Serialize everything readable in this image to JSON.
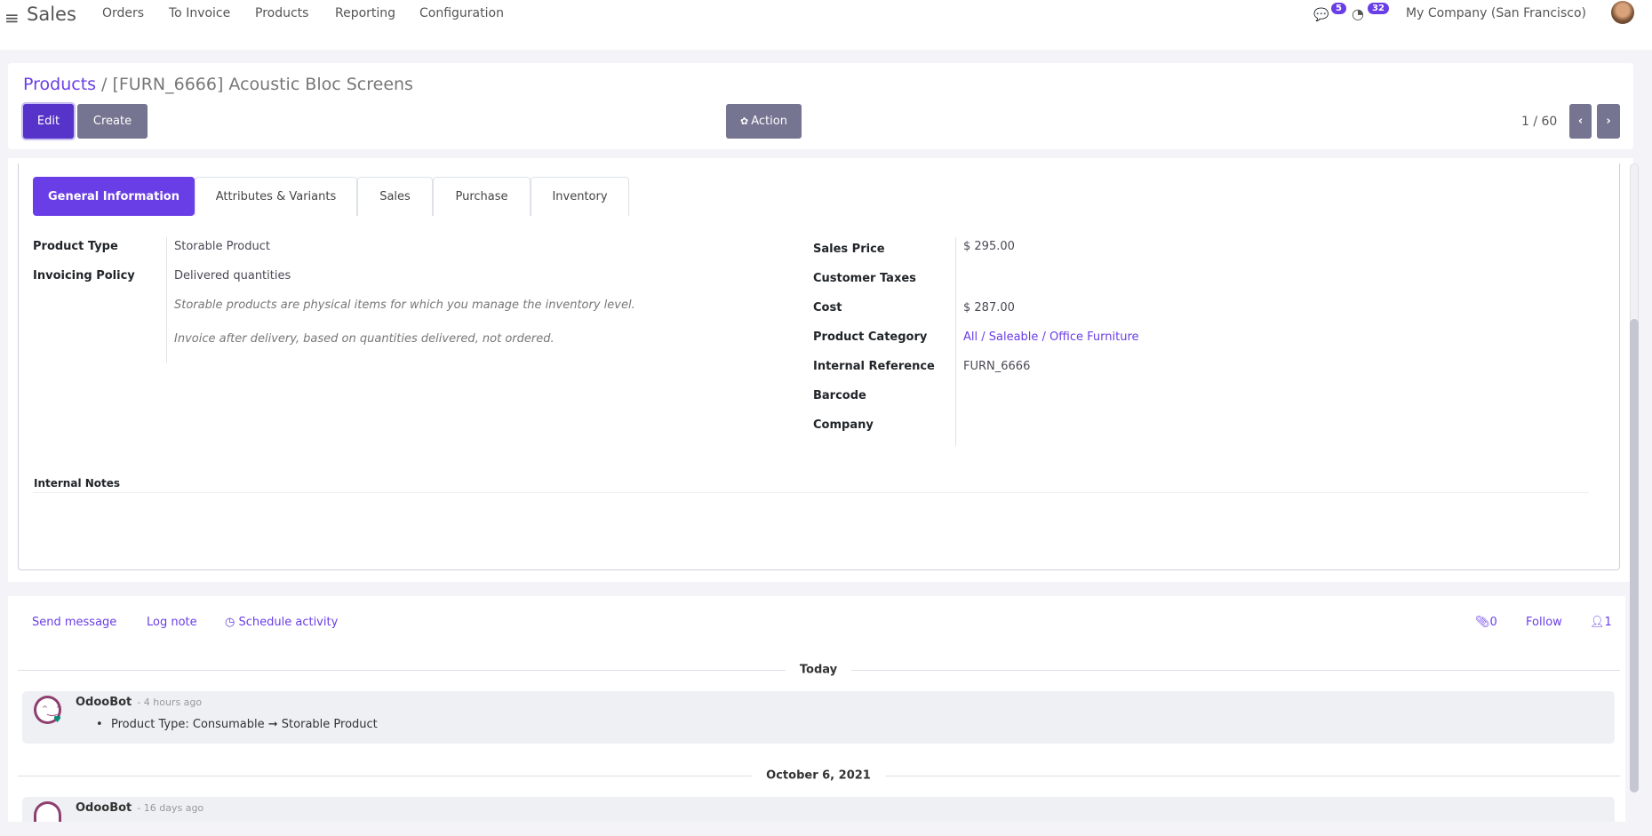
{
  "navbar": {
    "app": "Sales",
    "menu": [
      "Orders",
      "To Invoice",
      "Products",
      "Reporting",
      "Configuration"
    ],
    "messages_count": "5",
    "activities_count": "32",
    "company": "My Company (San Francisco)"
  },
  "control": {
    "breadcrumb_parent": "Products",
    "breadcrumb_sep": "/",
    "record_title": "[FURN_6666] Acoustic Bloc Screens",
    "edit": "Edit",
    "create": "Create",
    "action": "Action",
    "pager": "1 / 60"
  },
  "tabs": [
    "General Information",
    "Attributes & Variants",
    "Sales",
    "Purchase",
    "Inventory"
  ],
  "left_fields": [
    {
      "label": "Product Type",
      "value": "Storable Product"
    },
    {
      "label": "Invoicing Policy",
      "value": "Delivered quantities"
    }
  ],
  "help": [
    "Storable products are physical items for which you manage the inventory level.",
    "Invoice after delivery, based on quantities delivered, not ordered."
  ],
  "right_fields": [
    {
      "label": "Sales Price",
      "value": "$ 295.00"
    },
    {
      "label": "Customer Taxes",
      "value": ""
    },
    {
      "label": "Cost",
      "value": "$ 287.00"
    },
    {
      "label": "Product Category",
      "value": "All / Saleable / Office Furniture"
    },
    {
      "label": "Internal Reference",
      "value": "FURN_6666"
    },
    {
      "label": "Barcode",
      "value": ""
    },
    {
      "label": "Company",
      "value": ""
    }
  ],
  "internal_notes": "Internal Notes",
  "chatter": {
    "send_message": "Send message",
    "log_note": "Log note",
    "schedule_activity": "Schedule activity",
    "attachments": "0",
    "follow": "Follow",
    "followers": "1",
    "groups": [
      {
        "date": "Today",
        "author": "OdooBot",
        "time": "- 4 hours ago",
        "change": "Product Type: Consumable ➞ Storable Product"
      },
      {
        "date": "October 6, 2021",
        "author": "OdooBot",
        "time": "- 16 days ago"
      }
    ]
  },
  "colors": {
    "accent": "#6a3ee6",
    "edit": "#5633c9",
    "secondary": "#757491"
  }
}
